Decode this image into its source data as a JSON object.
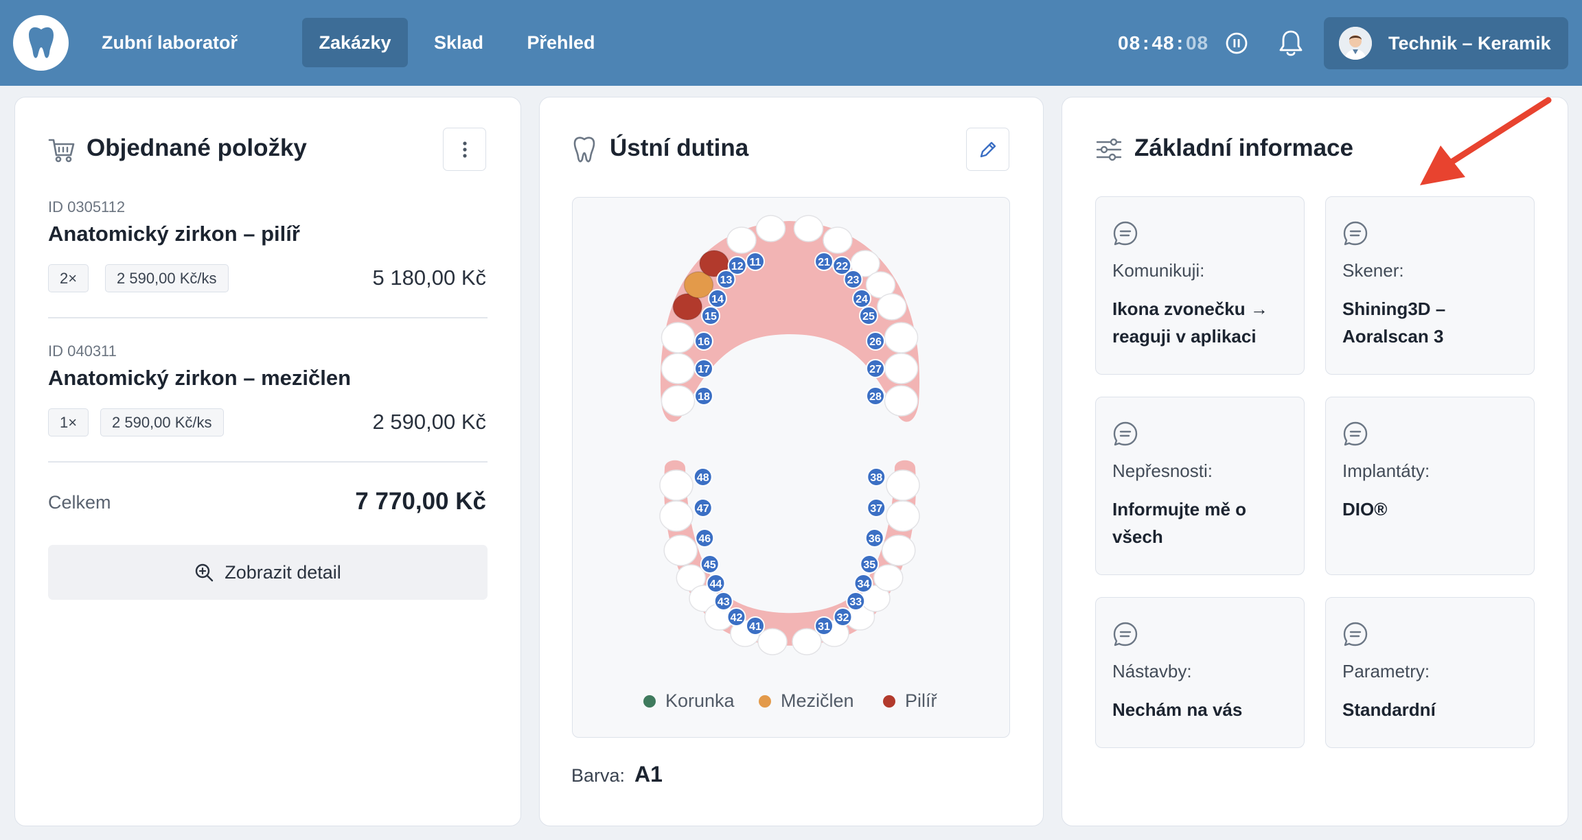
{
  "header": {
    "app_name": "Zubní laboratoř",
    "nav": [
      {
        "label": "Zakázky",
        "active": true
      },
      {
        "label": "Sklad",
        "active": false
      },
      {
        "label": "Přehled",
        "active": false
      }
    ],
    "timer": {
      "hours": "08",
      "minutes": "48",
      "seconds": "08"
    },
    "user_name": "Technik – Keramik"
  },
  "orders": {
    "title": "Objednané položky",
    "items": [
      {
        "id": "ID 0305112",
        "name": "Anatomický zirkon – pilíř",
        "qty": "2×",
        "unit_price": "2 590,00 Kč/ks",
        "total": "5 180,00 Kč"
      },
      {
        "id": "ID 040311",
        "name": "Anatomický zirkon – mezičlen",
        "qty": "1×",
        "unit_price": "2 590,00 Kč/ks",
        "total": "2 590,00 Kč"
      }
    ],
    "total_label": "Celkem",
    "total_value": "7 770,00 Kč",
    "detail_button": "Zobrazit detail"
  },
  "mouth": {
    "title": "Ústní dutina",
    "upper_teeth": [
      "18",
      "17",
      "16",
      "15",
      "14",
      "13",
      "12",
      "11",
      "21",
      "22",
      "23",
      "24",
      "25",
      "26",
      "27",
      "28"
    ],
    "lower_teeth": [
      "48",
      "47",
      "46",
      "45",
      "44",
      "43",
      "42",
      "41",
      "31",
      "32",
      "33",
      "34",
      "35",
      "36",
      "37",
      "38"
    ],
    "marked_teeth": [
      {
        "tooth": "13",
        "type": "abutment"
      },
      {
        "tooth": "14",
        "type": "pontic"
      },
      {
        "tooth": "15",
        "type": "abutment"
      }
    ],
    "legend": [
      {
        "label": "Korunka",
        "color": "#3f7a5d"
      },
      {
        "label": "Mezičlen",
        "color": "#e39a4a"
      },
      {
        "label": "Pilíř",
        "color": "#b23a2c"
      }
    ],
    "shade_label": "Barva:",
    "shade_value": "A1"
  },
  "info": {
    "title": "Základní informace",
    "tiles": [
      {
        "label": "Komunikuji:",
        "value": "Ikona zvonečku → reaguji v aplikaci"
      },
      {
        "label": "Skener:",
        "value": "Shining3D – Aoralscan 3"
      },
      {
        "label": "Nepřesnosti:",
        "value": "Informujte mě o všech"
      },
      {
        "label": "Implantáty:",
        "value": "DIO®"
      },
      {
        "label": "Nástavby:",
        "value": "Nechám na vás"
      },
      {
        "label": "Parametry:",
        "value": "Standardní"
      }
    ]
  },
  "colors": {
    "header_bg": "#4d84b4",
    "tooth_badge": "#3b6fc4",
    "gum": "#f2b4b4",
    "annotation_arrow": "#e8432f"
  }
}
